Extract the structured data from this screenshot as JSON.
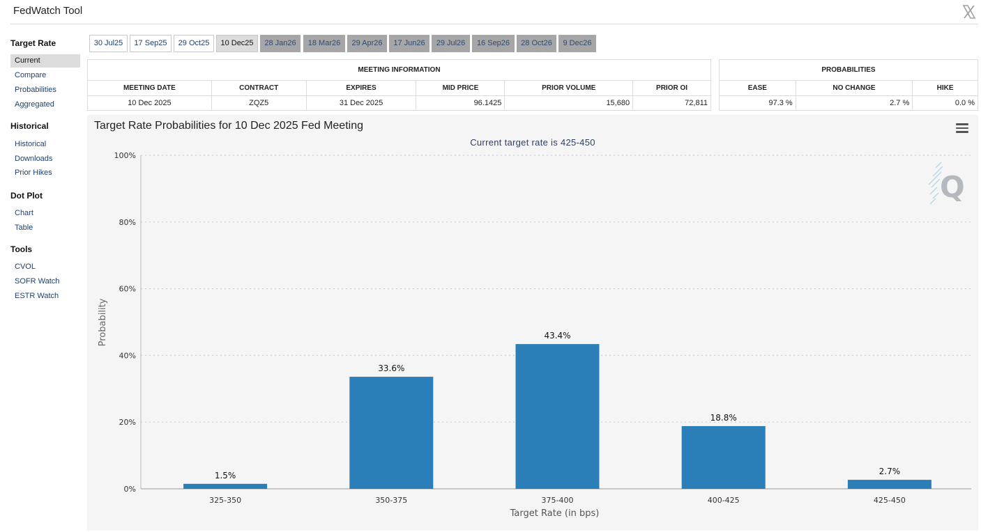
{
  "app": {
    "title": "FedWatch Tool"
  },
  "sidebar": {
    "sections": [
      {
        "label": "Target Rate",
        "items": [
          {
            "label": "Current",
            "active": true
          },
          {
            "label": "Compare"
          },
          {
            "label": "Probabilities"
          },
          {
            "label": "Aggregated"
          }
        ]
      },
      {
        "label": "Historical",
        "items": [
          {
            "label": "Historical"
          },
          {
            "label": "Downloads"
          },
          {
            "label": "Prior Hikes"
          }
        ]
      },
      {
        "label": "Dot Plot",
        "items": [
          {
            "label": "Chart"
          },
          {
            "label": "Table"
          }
        ]
      },
      {
        "label": "Tools",
        "items": [
          {
            "label": "CVOL"
          },
          {
            "label": "SOFR Watch"
          },
          {
            "label": "ESTR Watch"
          }
        ]
      }
    ]
  },
  "tabs": [
    {
      "label": "30 Jul25",
      "state": "normal"
    },
    {
      "label": "17 Sep25",
      "state": "normal"
    },
    {
      "label": "29 Oct25",
      "state": "normal"
    },
    {
      "label": "10 Dec25",
      "state": "selected"
    },
    {
      "label": "28 Jan26",
      "state": "disabled"
    },
    {
      "label": "18 Mar26",
      "state": "disabled"
    },
    {
      "label": "29 Apr26",
      "state": "disabled"
    },
    {
      "label": "17 Jun26",
      "state": "disabled"
    },
    {
      "label": "29 Jul26",
      "state": "disabled"
    },
    {
      "label": "16 Sep26",
      "state": "disabled"
    },
    {
      "label": "28 Oct26",
      "state": "disabled"
    },
    {
      "label": "9 Dec26",
      "state": "disabled"
    }
  ],
  "meeting_info": {
    "header": "MEETING INFORMATION",
    "columns": [
      "MEETING DATE",
      "CONTRACT",
      "EXPIRES",
      "MID PRICE",
      "PRIOR VOLUME",
      "PRIOR OI"
    ],
    "row": [
      "10 Dec 2025",
      "ZQZ5",
      "31 Dec 2025",
      "96.1425",
      "15,680",
      "72,811"
    ]
  },
  "probabilities": {
    "header": "PROBABILITIES",
    "columns": [
      "EASE",
      "NO CHANGE",
      "HIKE"
    ],
    "row": [
      "97.3 %",
      "2.7 %",
      "0.0 %"
    ]
  },
  "chart_data": {
    "type": "bar",
    "title": "Target Rate Probabilities for 10 Dec 2025 Fed Meeting",
    "subtitle": "Current target rate is 425-450",
    "xlabel": "Target Rate (in bps)",
    "ylabel": "Probability",
    "categories": [
      "325-350",
      "350-375",
      "375-400",
      "400-425",
      "425-450"
    ],
    "values": [
      1.5,
      33.6,
      43.4,
      18.8,
      2.7
    ],
    "data_labels": [
      "1.5%",
      "33.6%",
      "43.4%",
      "18.8%",
      "2.7%"
    ],
    "ylim": [
      0,
      100
    ],
    "yticks": [
      "0%",
      "20%",
      "40%",
      "60%",
      "80%",
      "100%"
    ],
    "ytick_values": [
      0,
      20,
      40,
      60,
      80,
      100
    ],
    "grid": true,
    "bar_color": "#2b7fb8"
  },
  "colors": {
    "accent": "#2b7fb8",
    "link": "#1d3f6e"
  },
  "icons": {
    "close": "x-logo-icon",
    "menu": "hamburger-menu-icon",
    "watermark": "q-logo-icon"
  }
}
